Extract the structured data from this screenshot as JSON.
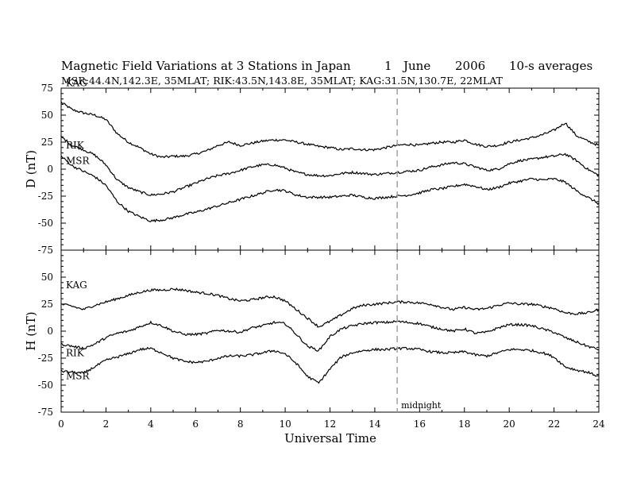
{
  "title": {
    "main": "Magnetic Field Variations at 3 Stations in Japan",
    "day": "1",
    "month": "June",
    "year": "2006",
    "averaging": "10-s averages",
    "stations": "MSR:44.4N,142.3E, 35MLAT;   RIK:43.5N,143.8E, 35MLAT;   KAG:31.5N,130.7E, 22MLAT"
  },
  "chart_data": [
    {
      "type": "line",
      "panel": "D",
      "ylabel": "D (nT)",
      "xlabel": "",
      "xlim": [
        0,
        24
      ],
      "ylim": [
        -75,
        75
      ],
      "yticks": [
        -75,
        -50,
        -25,
        0,
        25,
        50,
        75
      ],
      "x": [
        0,
        0.5,
        1,
        1.5,
        2,
        2.5,
        3,
        3.5,
        4,
        4.5,
        5,
        5.5,
        6,
        6.5,
        7,
        7.5,
        8,
        8.5,
        9,
        9.5,
        10,
        10.5,
        11,
        11.5,
        12,
        12.5,
        13,
        13.5,
        14,
        14.5,
        15,
        15.5,
        16,
        16.5,
        17,
        17.5,
        18,
        18.5,
        19,
        19.5,
        20,
        20.5,
        21,
        21.5,
        22,
        22.5,
        23,
        23.5,
        24
      ],
      "series": [
        {
          "name": "KAG",
          "values": [
            62,
            55,
            52,
            50,
            46,
            33,
            25,
            20,
            14,
            11,
            12,
            12,
            14,
            17,
            22,
            25,
            22,
            24,
            26,
            27,
            27,
            25,
            23,
            21,
            20,
            18,
            19,
            18,
            18,
            20,
            22,
            23,
            22,
            24,
            25,
            25,
            27,
            23,
            21,
            22,
            25,
            27,
            29,
            32,
            36,
            43,
            31,
            26,
            22
          ]
        },
        {
          "name": "RIK",
          "values": [
            30,
            22,
            18,
            13,
            4,
            -10,
            -17,
            -21,
            -24,
            -23,
            -21,
            -17,
            -13,
            -9,
            -6,
            -4,
            -1,
            2,
            4,
            4,
            1,
            -3,
            -5,
            -6,
            -6,
            -4,
            -3,
            -4,
            -5,
            -4,
            -3,
            -2,
            -1,
            2,
            4,
            6,
            5,
            2,
            -1,
            0,
            5,
            8,
            9,
            11,
            12,
            14,
            8,
            0,
            -6
          ]
        },
        {
          "name": "MSR",
          "values": [
            12,
            3,
            -2,
            -7,
            -15,
            -30,
            -39,
            -44,
            -48,
            -47,
            -45,
            -42,
            -40,
            -37,
            -34,
            -31,
            -28,
            -25,
            -22,
            -19,
            -20,
            -24,
            -26,
            -26,
            -26,
            -25,
            -24,
            -26,
            -27,
            -26,
            -25,
            -24,
            -22,
            -19,
            -18,
            -16,
            -14,
            -16,
            -19,
            -17,
            -13,
            -11,
            -9,
            -10,
            -9,
            -12,
            -20,
            -26,
            -32
          ]
        }
      ],
      "series_labels": [
        "KAG",
        "RIK",
        "MSR"
      ]
    },
    {
      "type": "line",
      "panel": "H",
      "ylabel": "H (nT)",
      "xlabel": "Universal Time",
      "xlim": [
        0,
        24
      ],
      "ylim": [
        -75,
        75
      ],
      "yticks": [
        -75,
        -50,
        -25,
        0,
        25,
        50
      ],
      "xticks": [
        0,
        2,
        4,
        6,
        8,
        10,
        12,
        14,
        16,
        18,
        20,
        22,
        24
      ],
      "x": [
        0,
        0.5,
        1,
        1.5,
        2,
        2.5,
        3,
        3.5,
        4,
        4.5,
        5,
        5.5,
        6,
        6.5,
        7,
        7.5,
        8,
        8.5,
        9,
        9.5,
        10,
        10.5,
        11,
        11.5,
        12,
        12.5,
        13,
        13.5,
        14,
        14.5,
        15,
        15.5,
        16,
        16.5,
        17,
        17.5,
        18,
        18.5,
        19,
        19.5,
        20,
        20.5,
        21,
        21.5,
        22,
        22.5,
        23,
        23.5,
        24
      ],
      "series": [
        {
          "name": "KAG",
          "values": [
            25,
            23,
            20,
            24,
            27,
            30,
            33,
            36,
            38,
            38,
            39,
            38,
            36,
            35,
            33,
            30,
            28,
            29,
            31,
            32,
            28,
            20,
            12,
            4,
            9,
            15,
            21,
            24,
            25,
            26,
            27,
            27,
            26,
            25,
            22,
            20,
            22,
            20,
            21,
            24,
            26,
            25,
            25,
            23,
            21,
            17,
            16,
            17,
            20
          ]
        },
        {
          "name": "RIK",
          "values": [
            -12,
            -14,
            -16,
            -12,
            -6,
            -2,
            0,
            4,
            8,
            5,
            0,
            -3,
            -3,
            -2,
            1,
            0,
            -1,
            3,
            5,
            8,
            7,
            -3,
            -14,
            -18,
            -5,
            2,
            5,
            7,
            8,
            8,
            9,
            8,
            7,
            4,
            2,
            0,
            2,
            -2,
            -1,
            3,
            6,
            6,
            5,
            2,
            -1,
            -6,
            -10,
            -14,
            -17
          ]
        },
        {
          "name": "MSR",
          "values": [
            -37,
            -38,
            -39,
            -33,
            -27,
            -24,
            -21,
            -17,
            -16,
            -20,
            -25,
            -28,
            -29,
            -28,
            -25,
            -23,
            -23,
            -22,
            -20,
            -18,
            -21,
            -30,
            -42,
            -48,
            -35,
            -24,
            -20,
            -18,
            -17,
            -17,
            -16,
            -16,
            -17,
            -19,
            -20,
            -20,
            -19,
            -22,
            -23,
            -20,
            -17,
            -17,
            -18,
            -20,
            -24,
            -33,
            -36,
            -38,
            -42
          ]
        }
      ],
      "series_labels": [
        "KAG",
        "RIK",
        "MSR"
      ]
    }
  ],
  "midnight": {
    "x": 15,
    "label": "midnight"
  },
  "colors": {
    "line": "#000000",
    "midnight_line": "#a0a0a0",
    "background": "#ffffff"
  }
}
